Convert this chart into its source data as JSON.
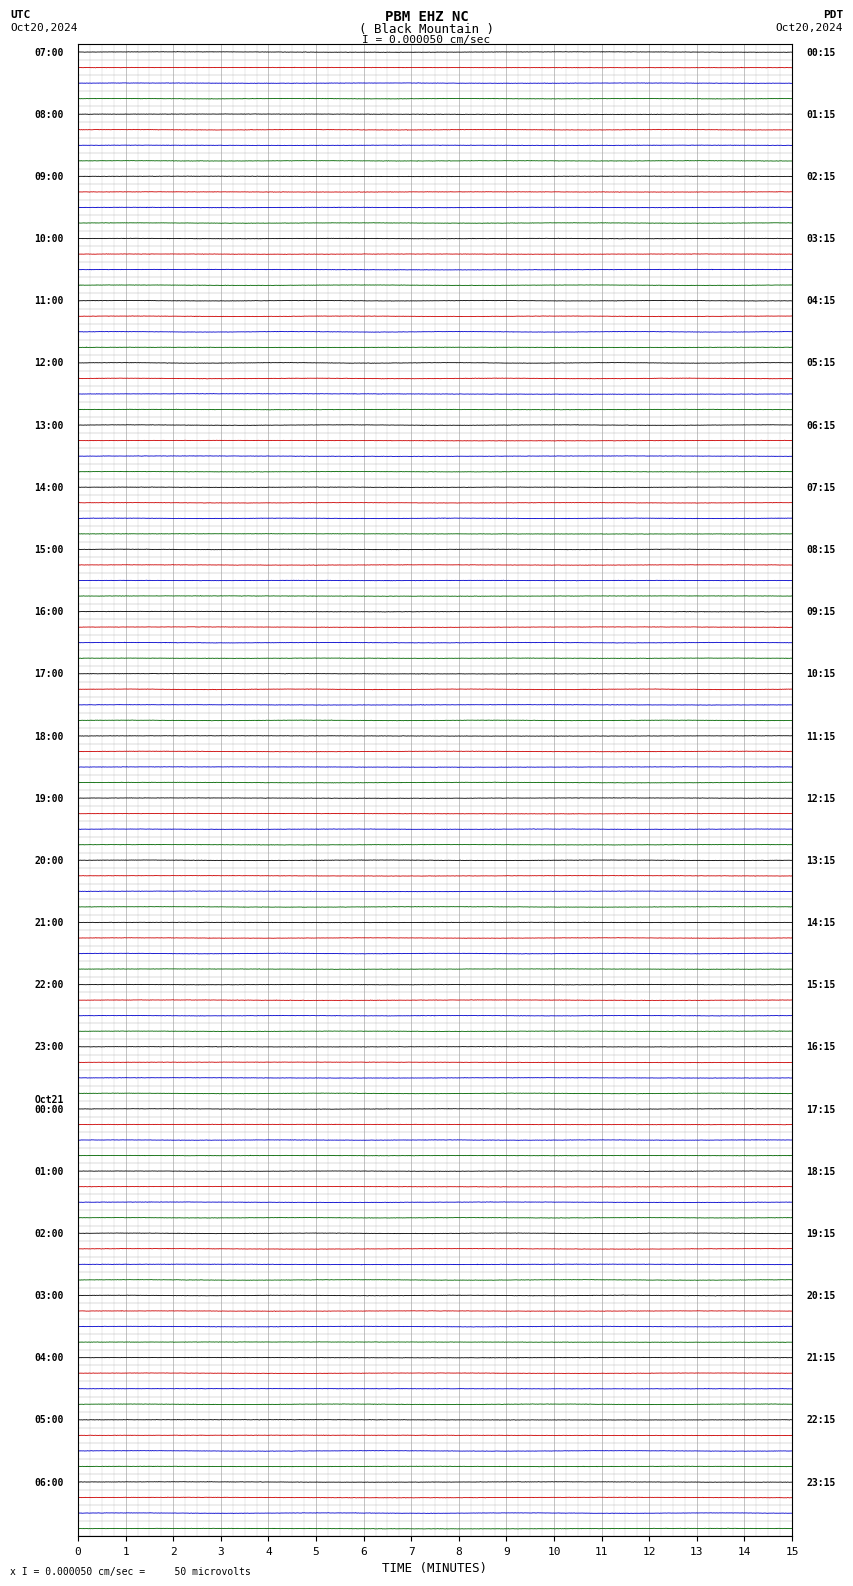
{
  "title_line1": "PBM EHZ NC",
  "title_line2": "( Black Mountain )",
  "scale_label": "I = 0.000050 cm/sec",
  "footer_label": "x I = 0.000050 cm/sec =     50 microvolts",
  "utc_label": "UTC",
  "pdt_label": "PDT",
  "date_left": "Oct20,2024",
  "date_right": "Oct20,2024",
  "xlabel": "TIME (MINUTES)",
  "xmin": 0,
  "xmax": 15,
  "background_color": "#ffffff",
  "trace_colors": [
    "#000000",
    "#cc0000",
    "#0000cc",
    "#006600"
  ],
  "utc_times": [
    "07:00",
    "",
    "",
    "",
    "08:00",
    "",
    "",
    "",
    "09:00",
    "",
    "",
    "",
    "10:00",
    "",
    "",
    "",
    "11:00",
    "",
    "",
    "",
    "12:00",
    "",
    "",
    "",
    "13:00",
    "",
    "",
    "",
    "14:00",
    "",
    "",
    "",
    "15:00",
    "",
    "",
    "",
    "16:00",
    "",
    "",
    "",
    "17:00",
    "",
    "",
    "",
    "18:00",
    "",
    "",
    "",
    "19:00",
    "",
    "",
    "",
    "20:00",
    "",
    "",
    "",
    "21:00",
    "",
    "",
    "",
    "22:00",
    "",
    "",
    "",
    "23:00",
    "",
    "",
    "",
    "Oct21",
    "00:00",
    "",
    "",
    "01:00",
    "",
    "",
    "",
    "02:00",
    "",
    "",
    "",
    "03:00",
    "",
    "",
    "",
    "04:00",
    "",
    "",
    "",
    "05:00",
    "",
    "",
    "",
    "06:00",
    "",
    "",
    ""
  ],
  "pdt_times": [
    "00:15",
    "01:15",
    "02:15",
    "03:15",
    "04:15",
    "05:15",
    "06:15",
    "07:15",
    "08:15",
    "09:15",
    "10:15",
    "11:15",
    "12:15",
    "13:15",
    "14:15",
    "15:15",
    "16:15",
    "17:15",
    "18:15",
    "19:15",
    "20:15",
    "21:15",
    "22:15",
    "23:15"
  ],
  "num_rows": 96,
  "traces_per_hour": 4,
  "num_hours": 24,
  "grid_color": "#aaaaaa",
  "grid_lw": 0.5,
  "trace_lw": 0.6,
  "noise_amplitude": 0.04,
  "hour_label_rows": [
    0,
    4,
    8,
    12,
    16,
    20,
    24,
    28,
    32,
    36,
    40,
    44,
    48,
    52,
    56,
    60,
    64,
    68,
    72,
    76,
    80,
    84,
    88,
    92
  ],
  "oct21_row": 68
}
